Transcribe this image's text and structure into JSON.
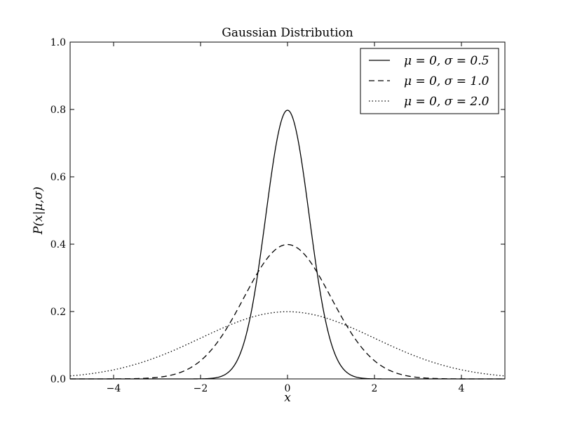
{
  "chart_data": {
    "type": "line",
    "title": "Gaussian Distribution",
    "xlabel": "x",
    "ylabel": "P(x|μ,σ)",
    "xlim": [
      -5,
      5
    ],
    "ylim": [
      0,
      1
    ],
    "xticks": [
      -4,
      -2,
      0,
      2,
      4
    ],
    "xtick_labels": [
      "−4",
      "−2",
      "0",
      "2",
      "4"
    ],
    "yticks": [
      0,
      0.2,
      0.4,
      0.6,
      0.8,
      1.0
    ],
    "ytick_labels": [
      "0.0",
      "0.2",
      "0.4",
      "0.6",
      "0.8",
      "1.0"
    ],
    "grid": false,
    "legend_position": "top-right",
    "series": [
      {
        "name": "μ = 0,  σ = 0.5",
        "mu": 0,
        "sigma": 0.5,
        "style": "solid",
        "x": [
          -3,
          -2,
          -1.5,
          -1,
          -0.5,
          0,
          0.5,
          1,
          1.5,
          2,
          3
        ],
        "values": [
          0.0,
          0.0003,
          0.0089,
          0.108,
          0.484,
          0.798,
          0.484,
          0.108,
          0.0089,
          0.0003,
          0.0
        ]
      },
      {
        "name": "μ = 0,  σ = 1.0",
        "mu": 0,
        "sigma": 1.0,
        "style": "dashed",
        "x": [
          -4,
          -3,
          -2,
          -1,
          0,
          1,
          2,
          3,
          4
        ],
        "values": [
          0.0001,
          0.0044,
          0.054,
          0.242,
          0.399,
          0.242,
          0.054,
          0.0044,
          0.0001
        ]
      },
      {
        "name": "μ = 0,  σ = 2.0",
        "mu": 0,
        "sigma": 2.0,
        "style": "dotted",
        "x": [
          -5,
          -4,
          -3,
          -2,
          -1,
          0,
          1,
          2,
          3,
          4,
          5
        ],
        "values": [
          0.0088,
          0.027,
          0.065,
          0.121,
          0.176,
          0.199,
          0.176,
          0.121,
          0.065,
          0.027,
          0.0088
        ]
      }
    ]
  }
}
